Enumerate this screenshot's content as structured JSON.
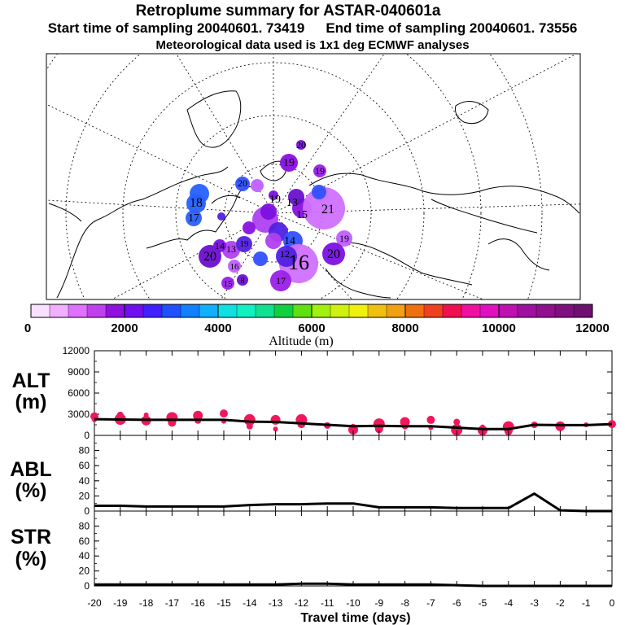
{
  "titles": {
    "main": "Retroplume summary for ASTAR-040601a",
    "start_sampling": "Start time of sampling 20040601. 73419",
    "end_sampling": "End time of sampling 20040601. 73556",
    "met_data": "Meteorological data used is 1x1 deg ECMWF analyses"
  },
  "map": {
    "labels": [
      {
        "text": "20",
        "color": "#2040ff"
      },
      {
        "text": "19",
        "color": "#2020d0"
      },
      {
        "text": "19",
        "color": "#a020f0"
      },
      {
        "text": "18",
        "color": "#3050ff"
      },
      {
        "text": "17",
        "color": "#2020c0"
      },
      {
        "text": "20",
        "color": "#2060ff"
      },
      {
        "text": "19",
        "color": "#2050f0"
      },
      {
        "text": "21",
        "color": "#d060ff"
      },
      {
        "text": "13",
        "color": "#c040f0"
      },
      {
        "text": "15",
        "color": "#b030f0"
      },
      {
        "text": "14",
        "color": "#a020e0"
      },
      {
        "text": "19",
        "color": "#9020d0"
      },
      {
        "text": "20",
        "color": "#9a20e0"
      },
      {
        "text": "16",
        "color": "#8a10d0"
      },
      {
        "text": "17",
        "color": "#a020e0"
      },
      {
        "text": "20",
        "color": "#a020e0"
      },
      {
        "text": "13",
        "color": "#b040f0"
      },
      {
        "text": "19",
        "color": "#c060ff"
      },
      {
        "text": "12",
        "color": "#9020e0"
      },
      {
        "text": "14",
        "color": "#a020e0"
      },
      {
        "text": "16",
        "color": "#9010d0"
      },
      {
        "text": "15",
        "color": "#a020e0"
      },
      {
        "text": "8",
        "color": "#8010d0"
      }
    ]
  },
  "colorbar": {
    "label": "Altitude (m)",
    "min": 0,
    "max": 12000,
    "step": 400,
    "tick_labels": [
      "0",
      "2000",
      "4000",
      "6000",
      "8000",
      "10000",
      "12000"
    ],
    "colors": [
      "#f8e0ff",
      "#f0b0ff",
      "#e070ff",
      "#c040f0",
      "#9010e0",
      "#7010f0",
      "#4020ff",
      "#2050ff",
      "#1080ff",
      "#10b0ff",
      "#10e0e0",
      "#10f0c0",
      "#10e090",
      "#10d040",
      "#60e010",
      "#a0f010",
      "#d0f010",
      "#f0f010",
      "#f0c010",
      "#f0a010",
      "#f07010",
      "#f04020",
      "#f01050",
      "#f010a0",
      "#e010c0",
      "#c010b0",
      "#a010a0",
      "#901090",
      "#801080",
      "#701070"
    ]
  },
  "panels": {
    "alt": {
      "label1": "ALT",
      "label2": "(m)",
      "ymax": 12000,
      "ticks": [
        "0",
        "3000",
        "6000",
        "9000",
        "12000"
      ]
    },
    "abl": {
      "label1": "ABL",
      "label2": "(%)",
      "ymax": 100,
      "ticks": [
        "0",
        "20",
        "40",
        "60",
        "80"
      ]
    },
    "str": {
      "label1": "STR",
      "label2": "(%)",
      "ymax": 100,
      "ticks": [
        "0",
        "20",
        "40",
        "60",
        "80"
      ]
    }
  },
  "x_axis": {
    "label": "Travel time (days)",
    "tick_labels": [
      "-20",
      "-19",
      "-18",
      "-17",
      "-16",
      "-15",
      "-14",
      "-13",
      "-12",
      "-11",
      "-10",
      "-9",
      "-8",
      "-7",
      "-6",
      "-5",
      "-4",
      "-3",
      "-2",
      "-1",
      "0"
    ]
  },
  "chart_data": [
    {
      "type": "line",
      "title": "ALT (m)",
      "xlabel": "Travel time (days)",
      "ylabel": "ALT (m)",
      "xlim": [
        -20,
        0
      ],
      "ylim": [
        0,
        12000
      ],
      "series": [
        {
          "name": "mean altitude",
          "x": [
            -20,
            -19,
            -18,
            -17,
            -16,
            -15,
            -14,
            -13,
            -12,
            -11,
            -10,
            -9,
            -8,
            -7,
            -6,
            -5,
            -4,
            -3,
            -2,
            -1,
            0
          ],
          "values": [
            2300,
            2250,
            2200,
            2200,
            2200,
            2200,
            1950,
            1900,
            1700,
            1500,
            1300,
            1350,
            1300,
            1300,
            1100,
            900,
            900,
            1500,
            1450,
            1450,
            1600
          ]
        }
      ],
      "cluster_points": [
        {
          "x": -20,
          "y": 2200
        },
        {
          "x": -20,
          "y": 2700
        },
        {
          "x": -19,
          "y": 2300
        },
        {
          "x": -19,
          "y": 2900
        },
        {
          "x": -18,
          "y": 2100
        },
        {
          "x": -18,
          "y": 2900
        },
        {
          "x": -17,
          "y": 1800
        },
        {
          "x": -17,
          "y": 2500
        },
        {
          "x": -16,
          "y": 2100
        },
        {
          "x": -16,
          "y": 2800
        },
        {
          "x": -15,
          "y": 2000
        },
        {
          "x": -15,
          "y": 3100
        },
        {
          "x": -14,
          "y": 2200
        },
        {
          "x": -14,
          "y": 1300
        },
        {
          "x": -13,
          "y": 2200
        },
        {
          "x": -13,
          "y": 900
        },
        {
          "x": -12,
          "y": 1600
        },
        {
          "x": -12,
          "y": 2200
        },
        {
          "x": -11,
          "y": 1400
        },
        {
          "x": -10,
          "y": 800
        },
        {
          "x": -10,
          "y": 1300
        },
        {
          "x": -9,
          "y": 900
        },
        {
          "x": -9,
          "y": 1600
        },
        {
          "x": -8,
          "y": 1300
        },
        {
          "x": -8,
          "y": 1900
        },
        {
          "x": -7,
          "y": 1100
        },
        {
          "x": -7,
          "y": 2200
        },
        {
          "x": -6,
          "y": 800
        },
        {
          "x": -6,
          "y": 1900
        },
        {
          "x": -5,
          "y": 700
        },
        {
          "x": -5,
          "y": 1200
        },
        {
          "x": -4,
          "y": 600
        },
        {
          "x": -4,
          "y": 1200
        },
        {
          "x": -3,
          "y": 1500
        },
        {
          "x": -2,
          "y": 1300
        },
        {
          "x": -1,
          "y": 1500
        },
        {
          "x": 0,
          "y": 1600
        }
      ]
    },
    {
      "type": "line",
      "title": "ABL (%)",
      "xlabel": "Travel time (days)",
      "ylabel": "ABL (%)",
      "xlim": [
        -20,
        0
      ],
      "ylim": [
        0,
        100
      ],
      "series": [
        {
          "name": "ABL",
          "x": [
            -20,
            -19,
            -18,
            -17,
            -16,
            -15,
            -14,
            -13,
            -12,
            -11,
            -10,
            -9,
            -8,
            -7,
            -6,
            -5,
            -4,
            -3,
            -2,
            -1,
            0
          ],
          "values": [
            7,
            7,
            6,
            6,
            6,
            6,
            8,
            9,
            9,
            10,
            10,
            5,
            5,
            5,
            4,
            4,
            4,
            23,
            1,
            0,
            0
          ]
        }
      ]
    },
    {
      "type": "line",
      "title": "STR (%)",
      "xlabel": "Travel time (days)",
      "ylabel": "STR (%)",
      "xlim": [
        -20,
        0
      ],
      "ylim": [
        0,
        100
      ],
      "series": [
        {
          "name": "STR",
          "x": [
            -20,
            -19,
            -18,
            -17,
            -16,
            -15,
            -14,
            -13,
            -12,
            -11,
            -10,
            -9,
            -8,
            -7,
            -6,
            -5,
            -4,
            -3,
            -2,
            -1,
            0
          ],
          "values": [
            2,
            2,
            2,
            2,
            2,
            2,
            2,
            2,
            3,
            3,
            2,
            2,
            2,
            2,
            1,
            0,
            0,
            0,
            0,
            0,
            0
          ]
        }
      ]
    }
  ]
}
